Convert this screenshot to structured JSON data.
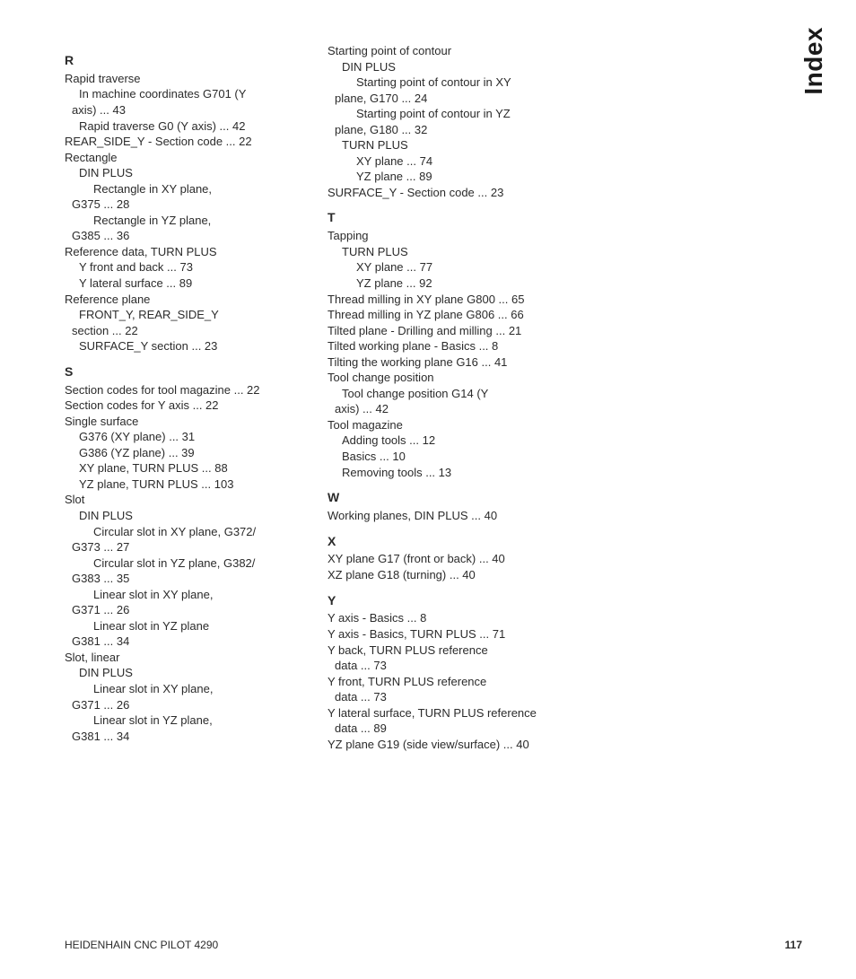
{
  "sideTitle": "Index",
  "footer": {
    "left": "HEIDENHAIN CNC PILOT 4290",
    "page": "117"
  },
  "col1": {
    "R": {
      "letter": "R",
      "rapid": "Rapid traverse",
      "rapid_1a": "In machine coordinates G701 (Y",
      "rapid_1b": "axis) ... 43",
      "rapid_2": "Rapid traverse G0 (Y axis) ... 42",
      "rear": "REAR_SIDE_Y - Section code ... 22",
      "rect": "Rectangle",
      "rect_din": "DIN PLUS",
      "rect_xy_a": "Rectangle in XY plane,",
      "rect_xy_b": "G375 ... 28",
      "rect_yz_a": "Rectangle in YZ plane,",
      "rect_yz_b": "G385 ... 36",
      "refdata": "Reference data, TURN PLUS",
      "refdata_1": "Y front and back ... 73",
      "refdata_2": "Y lateral surface ... 89",
      "refpl": "Reference plane",
      "refpl_1a": "FRONT_Y, REAR_SIDE_Y",
      "refpl_1b": "section ... 22",
      "refpl_2": "SURFACE_Y section ... 23"
    },
    "S": {
      "letter": "S",
      "sc1": "Section codes for tool magazine ... 22",
      "sc2": "Section codes for Y axis ... 22",
      "ss": "Single surface",
      "ss1": "G376 (XY plane) ... 31",
      "ss2": "G386 (YZ plane) ... 39",
      "ss3": "XY plane, TURN PLUS ... 88",
      "ss4": "YZ plane, TURN PLUS ... 103",
      "slot": "Slot",
      "slot_din": "DIN PLUS",
      "slot_cxy_a": "Circular slot in XY plane, G372/",
      "slot_cxy_b": "G373 ... 27",
      "slot_cyz_a": "Circular slot in YZ plane, G382/",
      "slot_cyz_b": "G383 ... 35",
      "slot_lxy_a": "Linear slot in XY plane,",
      "slot_lxy_b": "G371 ... 26",
      "slot_lyz_a": "Linear slot in YZ plane",
      "slot_lyz_b": "G381 ... 34",
      "sl": "Slot, linear",
      "sl_din": "DIN PLUS",
      "sl_xy_a": "Linear slot in XY plane,",
      "sl_xy_b": "G371 ... 26",
      "sl_yz_a": "Linear slot in YZ plane,",
      "sl_yz_b": "G381 ... 34"
    }
  },
  "col2": {
    "Stop": {
      "sp": "Starting point of contour",
      "sp_din": "DIN PLUS",
      "sp_xy_a": "Starting point of contour in XY",
      "sp_xy_b": "plane, G170 ... 24",
      "sp_yz_a": "Starting point of contour in YZ",
      "sp_yz_b": "plane, G180 ... 32",
      "sp_tp": "TURN PLUS",
      "sp_tp_xy": "XY plane ... 74",
      "sp_tp_yz": "YZ plane ... 89",
      "surf": "SURFACE_Y - Section code ... 23"
    },
    "T": {
      "letter": "T",
      "tap": "Tapping",
      "tap_tp": "TURN PLUS",
      "tap_xy": "XY plane ... 77",
      "tap_yz": "YZ plane ... 92",
      "tm_xy": "Thread milling in XY plane G800 ... 65",
      "tm_yz": "Thread milling in YZ plane G806 ... 66",
      "tp_dm": "Tilted plane - Drilling and milling ... 21",
      "twp_b": "Tilted working plane - Basics ... 8",
      "twp_g": "Tilting the working plane G16 ... 41",
      "tcp": "Tool change position",
      "tcp_a": "Tool change position G14 (Y",
      "tcp_b": "axis) ... 42",
      "tmag": "Tool magazine",
      "tmag1": "Adding tools ... 12",
      "tmag2": "Basics ... 10",
      "tmag3": "Removing tools ... 13"
    },
    "W": {
      "letter": "W",
      "w1": "Working planes, DIN PLUS ... 40"
    },
    "X": {
      "letter": "X",
      "x1": "XY plane G17 (front or back) ... 40",
      "x2": "XZ plane G18 (turning) ... 40"
    },
    "Y": {
      "letter": "Y",
      "y1": "Y axis - Basics ... 8",
      "y2": "Y axis - Basics, TURN PLUS ... 71",
      "y3a": "Y back, TURN PLUS reference",
      "y3b": "data ... 73",
      "y4a": "Y front, TURN PLUS reference",
      "y4b": "data ... 73",
      "y5a": "Y lateral surface, TURN PLUS reference",
      "y5b": "data ... 89",
      "y6": "YZ plane G19 (side view/surface) ... 40"
    }
  }
}
